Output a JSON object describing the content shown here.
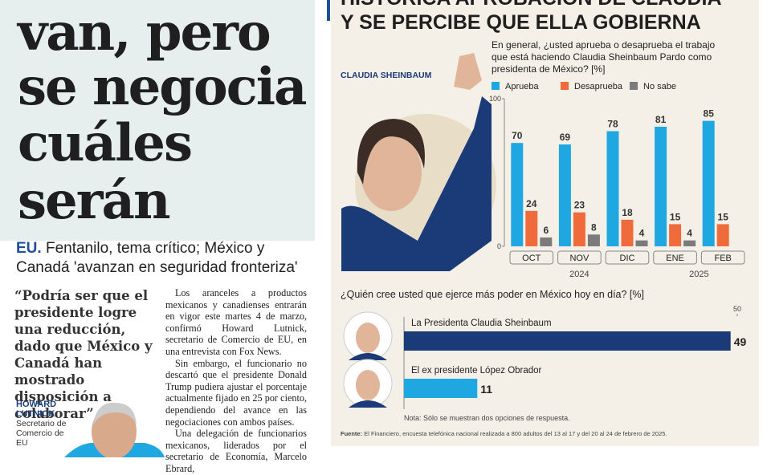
{
  "article": {
    "headline": [
      "van, pero",
      "se negocia",
      "cuáles",
      "serán"
    ],
    "subhead_lead": "EU.",
    "subhead": "Fentanilo, tema crítico; México y Canadá 'avanzan en seguridad fronteriza'",
    "quote": "“Podría ser que el presidente logre una reducción, dado que México y Canadá han mostrado disposición a colaborar”",
    "quote_name": "HOWARD LUTNICK",
    "quote_role": "Secretario de Comercio de EU",
    "body": [
      "Los aranceles a productos mexicanos y canadienses entrarán en vigor este martes 4 de marzo, confirmó Howard Lutnick, secretario de Comercio de EU, en una entrevista con Fox News.",
      "Sin embargo, el funcionario no descartó que el presidente Donald Trump pudiera ajustar el porcentaje actualmente fijado en 25 por ciento, dependiendo del avance en las negociaciones con ambos países.",
      "Una delegación de funcionarios mexicanos, liderados por el secretario de Economía, Marcelo Ebrard,"
    ]
  },
  "infographic": {
    "title": [
      "HISTÓRICA APROBACIÓN DE CLAUDIA",
      "Y SE PERCIBE QUE ELLA GOBIERNA"
    ],
    "photo_label": "CLAUDIA SHEINBAUM",
    "note": "Nota: Sólo se muestran dos opciones de respuesta.",
    "source_label": "Fuente:",
    "source": "El Financiero, encuesta telefónica nacional realizada a 800 adultos del 13 al 17 y del 20 al 24 de febrero de 2025."
  },
  "chart_data": [
    {
      "type": "bar",
      "title": "En general, ¿usted aprueba o desaprueba el trabajo que está haciendo Claudia Sheinbaum Pardo como presidenta de México? [%]",
      "categories": [
        "OCT",
        "NOV",
        "DIC",
        "ENE",
        "FEB"
      ],
      "year_labels": [
        "2024",
        "2025"
      ],
      "series": [
        {
          "name": "Aprueba",
          "color": "#1ea7e1",
          "values": [
            70,
            69,
            78,
            81,
            85
          ]
        },
        {
          "name": "Desaprueba",
          "color": "#ef6b3b",
          "values": [
            24,
            23,
            18,
            15,
            15
          ]
        },
        {
          "name": "No sabe",
          "color": "#7b7b7b",
          "values": [
            6,
            8,
            4,
            4,
            null
          ]
        }
      ],
      "ylim": [
        0,
        100
      ],
      "yticks": [
        0,
        100
      ]
    },
    {
      "type": "hbar",
      "title": "¿Quién cree usted que ejerce más poder en México hoy en día? [%]",
      "categories": [
        "La Presidenta Claudia Sheinbaum",
        "El ex presidente López Obrador"
      ],
      "values": [
        49,
        11
      ],
      "colors": [
        "#1b3a78",
        "#1ea7e1"
      ],
      "xlim": [
        0,
        50
      ],
      "xticks": [
        50
      ]
    }
  ]
}
